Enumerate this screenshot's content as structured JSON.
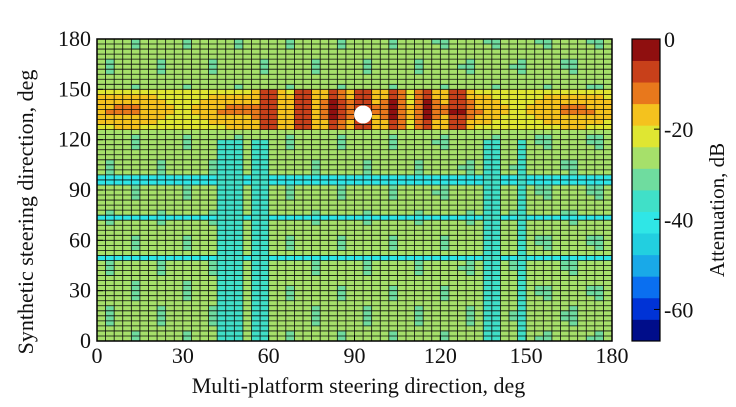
{
  "chart_data": {
    "type": "heatmap",
    "title": "",
    "xlabel": "Multi-platform steering direction, deg",
    "ylabel": "Synthetic steering direction, deg",
    "xlim": [
      0,
      180
    ],
    "ylim": [
      0,
      180
    ],
    "x_ticks": [
      "0",
      "30",
      "60",
      "90",
      "120",
      "150",
      "180"
    ],
    "y_ticks": [
      "0",
      "30",
      "60",
      "90",
      "120",
      "150",
      "180"
    ],
    "grid": true,
    "colorbar": {
      "label": "Attenuation, dB",
      "range": [
        -67,
        0
      ],
      "ticks": [
        "0",
        "-20",
        "-40",
        "-60"
      ],
      "colors": [
        "#000d8a",
        "#0033d6",
        "#0a6ff0",
        "#19a9e8",
        "#22cfe0",
        "#2fe6e6",
        "#40e0c8",
        "#6fdc9f",
        "#a6e06a",
        "#dfe632",
        "#f4c21e",
        "#e8781c",
        "#c8401a",
        "#8f0f0f"
      ]
    },
    "marker": {
      "x": 93,
      "y": 135,
      "color": "#ffffff"
    },
    "description_cells": {
      "x_step_deg": 3,
      "y_step_deg": 3,
      "main_lobe_y_range": [
        125,
        150
      ],
      "main_lobe_peaks_x": [
        60,
        72,
        83,
        93,
        104,
        115,
        126
      ],
      "main_lobe_peak_value_db": -2,
      "band_row_y_values": [
        96,
        74,
        49
      ],
      "band_row_value_db": -42,
      "band_column_x_values": [
        45,
        48,
        57,
        138,
        148
      ],
      "band_column_value_db": -38,
      "background_value_db": -27
    }
  }
}
